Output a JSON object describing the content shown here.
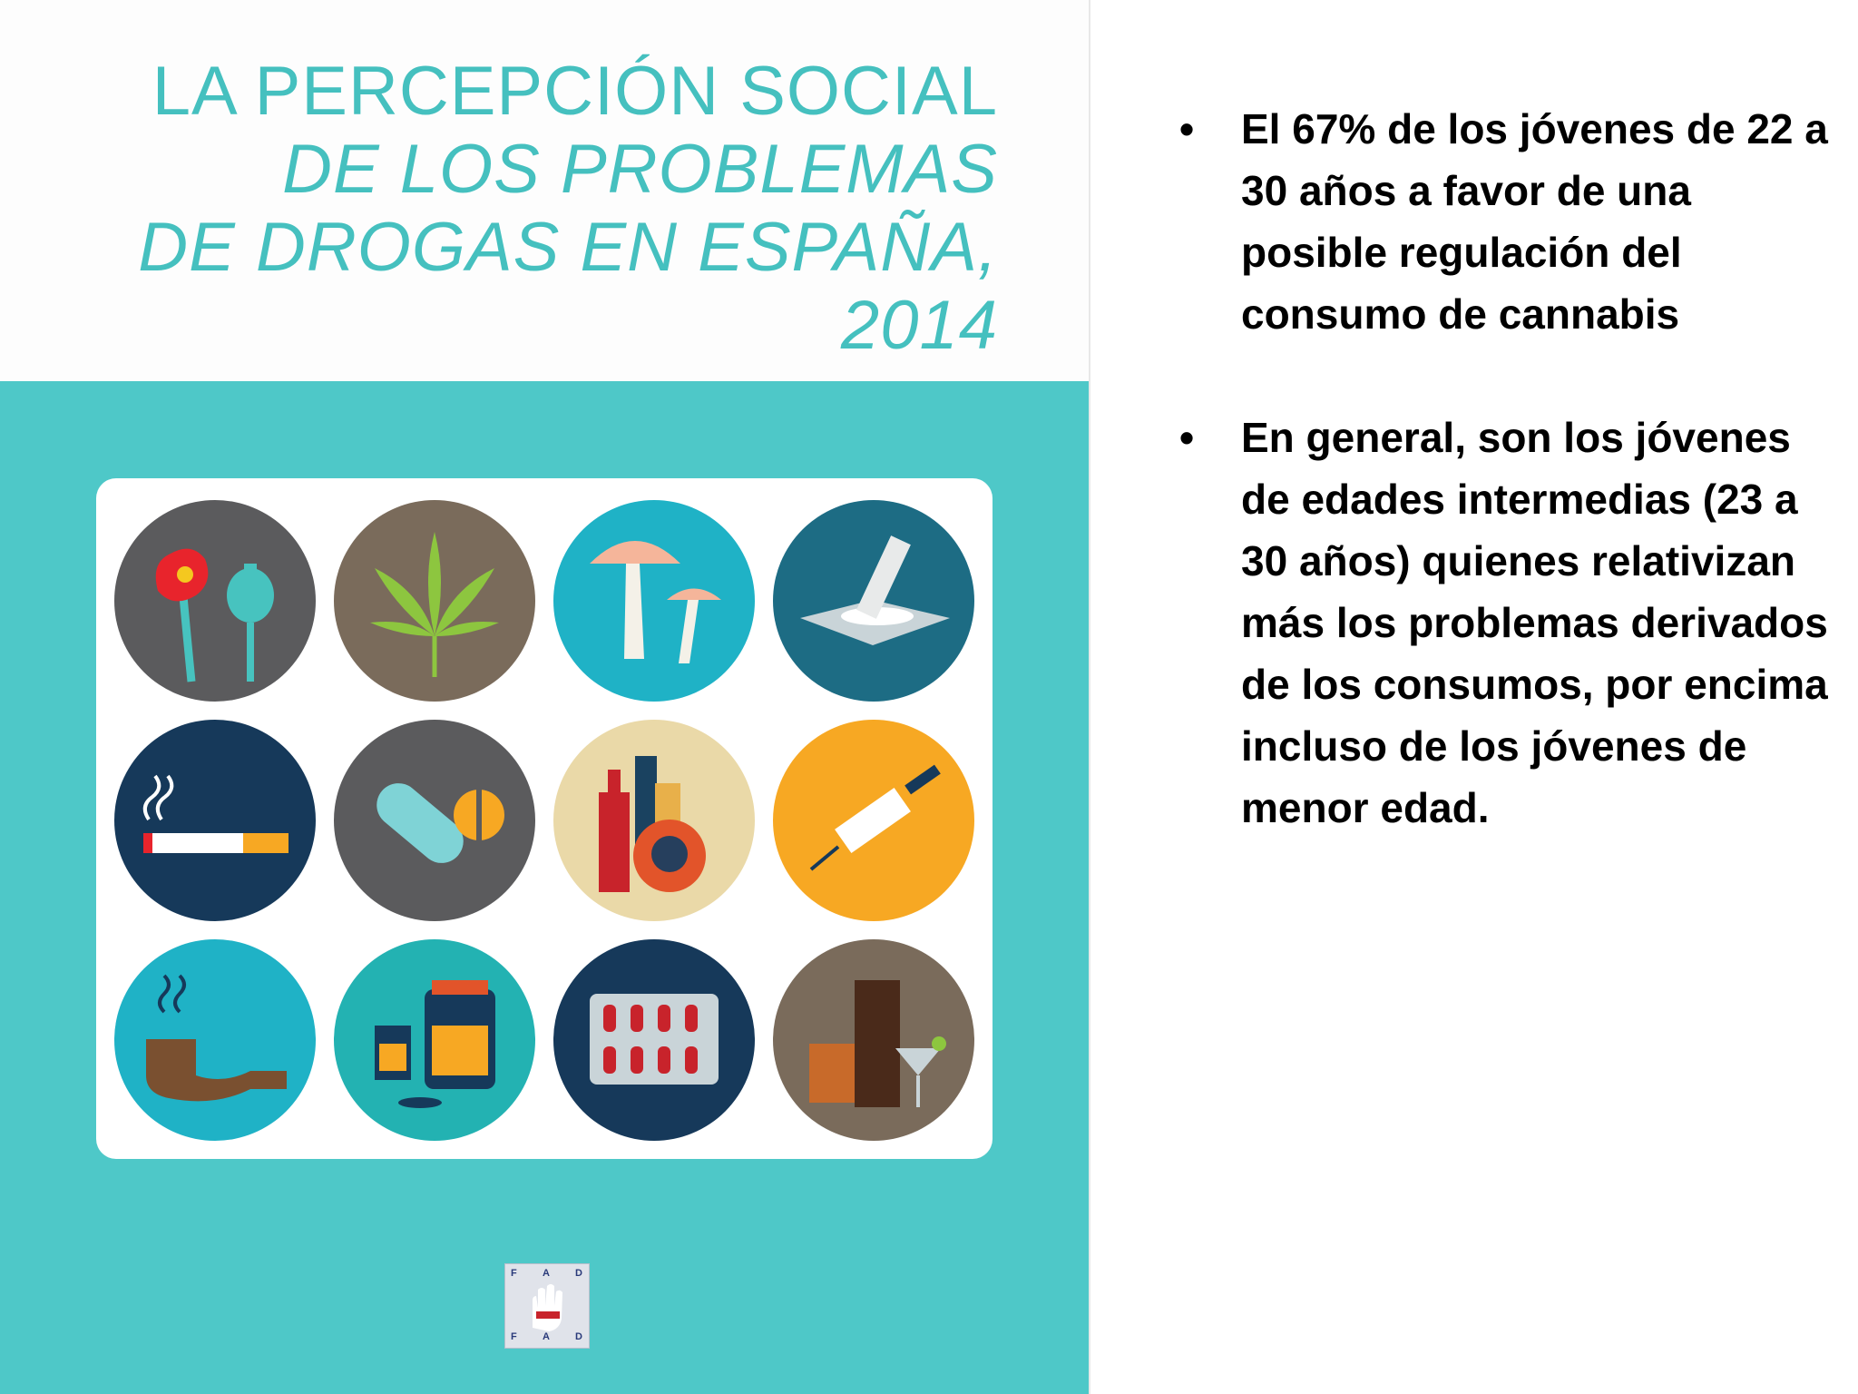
{
  "cover": {
    "title_line1": "LA PERCEPCIÓN SOCIAL",
    "title_line2": "DE LOS PROBLEMAS",
    "title_line3": "DE DROGAS EN ESPAÑA, 2014",
    "logo_letters": [
      "F",
      "A",
      "D",
      "F",
      "A",
      "D"
    ],
    "icons": [
      "poppy-icon",
      "cannabis-leaf-icon",
      "mushrooms-icon",
      "cocaine-icon",
      "cigarette-icon",
      "pills-icon",
      "alcohol-bottles-icon",
      "syringe-icon",
      "pipe-icon",
      "jars-icon",
      "blister-pack-icon",
      "drinks-icon"
    ]
  },
  "bullets": [
    {
      "marker": "•",
      "text": "El 67% de los jóvenes de 22 a 30 años a favor de una posible regulación del consumo de cannabis"
    },
    {
      "marker": "•",
      "text": "En general, son los jóvenes de edades intermedias (23 a 30 años) quienes relativizan más los problemas derivados de los consumos, por encima incluso de los jóvenes de menor edad."
    }
  ],
  "colors": {
    "teal_band": "#4ec8c8",
    "title_teal": "#45c0bf"
  }
}
